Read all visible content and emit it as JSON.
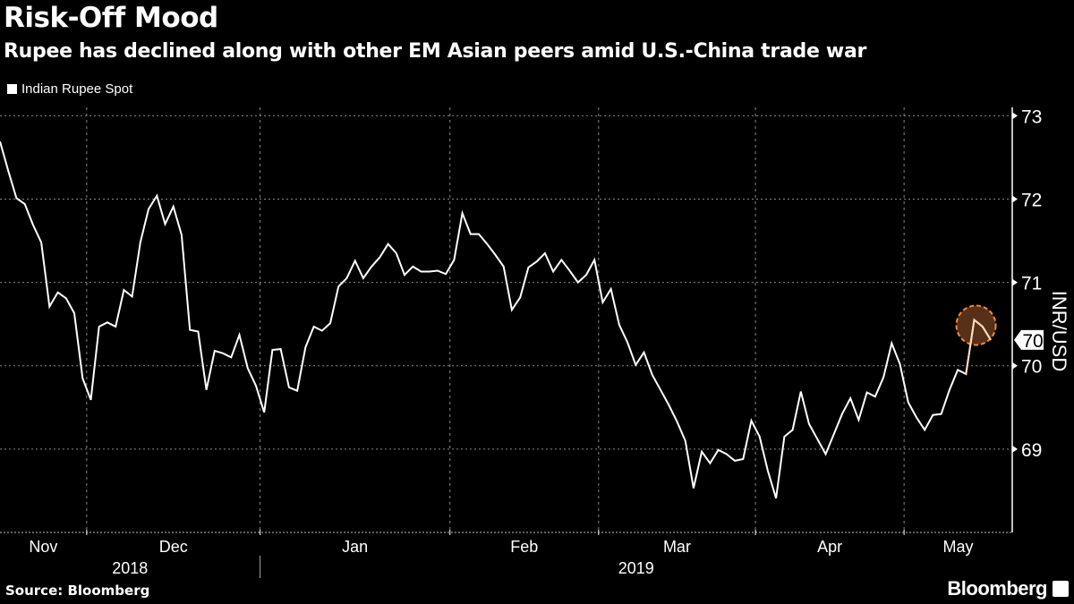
{
  "header": {
    "title": "Risk-Off Mood",
    "subtitle": "Rupee has declined along with other EM Asian peers amid U.S.-China trade war"
  },
  "footer": {
    "source": "Source: Bloomberg",
    "logo": "Bloomberg",
    "logo_icon": "bloomberg-chart-icon"
  },
  "colors": {
    "background": "#000000",
    "line": "#ffffff",
    "highlight_fill": "#5c3418",
    "highlight_stroke": "#f08a3c"
  },
  "chart_data": {
    "type": "line",
    "title": "Risk-Off Mood",
    "subtitle": "Rupee has declined along with other EM Asian peers amid U.S.-China trade war",
    "ylabel": "INR/USD",
    "ylim": [
      68,
      73.1
    ],
    "y_ticks": [
      69,
      70,
      71,
      72,
      73
    ],
    "y_axis_side": "right",
    "grid": true,
    "legend": "top-left",
    "x_month_labels": [
      "Nov",
      "Dec",
      "Jan",
      "Feb",
      "Mar",
      "Apr",
      "May"
    ],
    "x_year_labels": [
      "2018",
      "2019"
    ],
    "last_value_label": "70",
    "highlight": "circle around the latest peak",
    "series": [
      {
        "name": "Indian Rupee Spot",
        "dates": [
          "2018-11-16",
          "2018-11-19",
          "2018-11-20",
          "2018-11-21",
          "2018-11-22",
          "2018-11-23",
          "2018-11-26",
          "2018-11-27",
          "2018-11-28",
          "2018-11-29",
          "2018-11-30",
          "2018-12-03",
          "2018-12-04",
          "2018-12-05",
          "2018-12-06",
          "2018-12-07",
          "2018-12-10",
          "2018-12-11",
          "2018-12-12",
          "2018-12-13",
          "2018-12-14",
          "2018-12-17",
          "2018-12-18",
          "2018-12-19",
          "2018-12-20",
          "2018-12-21",
          "2018-12-24",
          "2018-12-25",
          "2018-12-26",
          "2018-12-27",
          "2018-12-28",
          "2018-12-31",
          "2019-01-01",
          "2019-01-02",
          "2019-01-03",
          "2019-01-04",
          "2019-01-07",
          "2019-01-08",
          "2019-01-09",
          "2019-01-10",
          "2019-01-11",
          "2019-01-14",
          "2019-01-15",
          "2019-01-16",
          "2019-01-17",
          "2019-01-18",
          "2019-01-21",
          "2019-01-22",
          "2019-01-23",
          "2019-01-24",
          "2019-01-25",
          "2019-01-28",
          "2019-01-29",
          "2019-01-30",
          "2019-01-31",
          "2019-02-01",
          "2019-02-04",
          "2019-02-05",
          "2019-02-06",
          "2019-02-07",
          "2019-02-08",
          "2019-02-11",
          "2019-02-12",
          "2019-02-13",
          "2019-02-14",
          "2019-02-15",
          "2019-02-18",
          "2019-02-19",
          "2019-02-20",
          "2019-02-21",
          "2019-02-22",
          "2019-02-25",
          "2019-02-28",
          "2019-03-01",
          "2019-03-05",
          "2019-03-06",
          "2019-03-07",
          "2019-03-08",
          "2019-03-11",
          "2019-03-12",
          "2019-03-13",
          "2019-03-14",
          "2019-03-15",
          "2019-03-18",
          "2019-03-19",
          "2019-03-20",
          "2019-03-22",
          "2019-03-25",
          "2019-03-26",
          "2019-03-27",
          "2019-03-28",
          "2019-03-29",
          "2019-04-01",
          "2019-04-02",
          "2019-04-03",
          "2019-04-04",
          "2019-04-05",
          "2019-04-08",
          "2019-04-09",
          "2019-04-10",
          "2019-04-11",
          "2019-04-12",
          "2019-04-15",
          "2019-04-16",
          "2019-04-18",
          "2019-04-22",
          "2019-04-23",
          "2019-04-24",
          "2019-04-25",
          "2019-04-26",
          "2019-05-02",
          "2019-05-03",
          "2019-05-06",
          "2019-05-07",
          "2019-05-08",
          "2019-05-09",
          "2019-05-10",
          "2019-05-13",
          "2019-05-14",
          "2019-05-15",
          "2019-05-16"
        ],
        "values": [
          72.69,
          72.34,
          72.01,
          71.94,
          71.69,
          71.48,
          70.71,
          70.88,
          70.81,
          70.63,
          69.85,
          69.59,
          70.47,
          70.52,
          70.47,
          70.91,
          70.83,
          71.48,
          71.88,
          72.04,
          71.7,
          71.91,
          71.57,
          70.43,
          70.41,
          69.71,
          70.18,
          70.15,
          70.1,
          70.37,
          69.97,
          69.76,
          69.44,
          70.19,
          70.2,
          69.74,
          69.7,
          70.22,
          70.47,
          70.42,
          70.51,
          70.95,
          71.05,
          71.26,
          71.05,
          71.19,
          71.3,
          71.46,
          71.35,
          71.09,
          71.19,
          71.13,
          71.13,
          71.14,
          71.1,
          71.27,
          71.83,
          71.58,
          71.58,
          71.46,
          71.33,
          71.19,
          70.67,
          70.82,
          71.18,
          71.25,
          71.35,
          71.13,
          71.27,
          71.14,
          71.0,
          71.09,
          71.27,
          70.76,
          70.92,
          70.49,
          70.28,
          70.01,
          70.16,
          69.89,
          69.71,
          69.53,
          69.33,
          69.1,
          68.53,
          68.97,
          68.83,
          68.99,
          68.94,
          68.86,
          68.88,
          69.34,
          69.15,
          68.74,
          68.41,
          69.15,
          69.23,
          69.69,
          69.3,
          69.12,
          68.94,
          69.18,
          69.42,
          69.61,
          69.35,
          69.68,
          69.63,
          69.86,
          70.27,
          70.02,
          69.56,
          69.38,
          69.23,
          69.41,
          69.42,
          69.71,
          69.95,
          69.9,
          70.55,
          70.47,
          70.31
        ]
      }
    ]
  }
}
